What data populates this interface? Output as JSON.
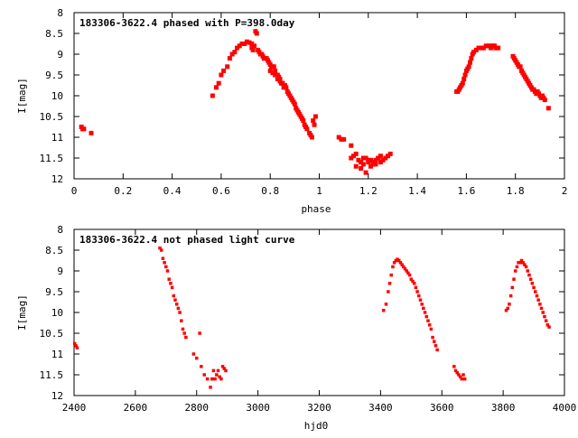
{
  "colors": {
    "points": "#ff0000",
    "axes": "#000000",
    "background": "#ffffff"
  },
  "chart_data": [
    {
      "type": "scatter",
      "title": "183306-3622.4 phased with P=398.0day",
      "xlabel": "phase",
      "ylabel": "I[mag]",
      "xlim": [
        0,
        2
      ],
      "ylim": [
        8,
        12
      ],
      "y_inverted": true,
      "grid": false,
      "legend": "none",
      "x_ticks": [
        0,
        0.2,
        0.4,
        0.6,
        0.8,
        1,
        1.2,
        1.4,
        1.6,
        1.8,
        2
      ],
      "x_tick_labels": [
        "0",
        "0.2",
        "0.4",
        "0.6",
        "0.8",
        "1",
        "1.2",
        "1.4",
        "1.6",
        "1.8",
        "2"
      ],
      "y_ticks": [
        8,
        8.5,
        9,
        9.5,
        10,
        10.5,
        11,
        11.5,
        12
      ],
      "y_tick_labels": [
        "8",
        "8.5",
        "9",
        "9.5",
        "10",
        "10.5",
        "11",
        "11.5",
        "12"
      ],
      "series": [
        {
          "x": [
            0.03,
            0.035,
            0.04,
            0.07,
            0.565,
            0.58,
            0.59,
            0.6,
            0.61,
            0.625,
            0.635,
            0.645,
            0.655,
            0.665,
            0.675,
            0.685,
            0.695,
            0.705,
            0.715,
            0.725,
            0.735,
            0.74,
            0.745,
            0.75,
            0.755,
            0.76,
            0.765,
            0.77,
            0.775,
            0.78,
            0.785,
            0.79,
            0.795,
            0.8,
            0.805,
            0.81,
            0.815,
            0.82,
            0.825,
            0.83,
            0.835,
            0.84,
            0.845,
            0.85,
            0.855,
            0.86,
            0.865,
            0.87,
            0.875,
            0.88,
            0.885,
            0.89,
            0.895,
            0.9,
            0.905,
            0.91,
            0.915,
            0.92,
            0.925,
            0.93,
            0.935,
            0.94,
            0.945,
            0.95,
            0.96,
            0.965,
            0.97,
            0.975,
            0.98,
            0.985,
            0.765,
            0.775,
            0.8,
            0.81,
            0.82,
            0.83,
            0.84,
            0.85,
            0.725,
            0.73,
            1.08,
            1.09,
            1.1,
            1.13,
            1.13,
            1.14,
            1.15,
            1.16,
            1.17,
            1.18,
            1.19,
            1.2,
            1.21,
            1.22,
            1.23,
            1.24,
            1.25,
            1.26,
            1.27,
            1.28,
            1.29,
            1.15,
            1.17,
            1.19,
            1.21,
            1.23,
            1.25,
            1.18,
            1.2,
            1.22,
            1.56,
            1.565,
            1.57,
            1.575,
            1.58,
            1.585,
            1.59,
            1.595,
            1.6,
            1.605,
            1.61,
            1.615,
            1.62,
            1.625,
            1.63,
            1.64,
            1.65,
            1.66,
            1.67,
            1.68,
            1.69,
            1.695,
            1.7,
            1.705,
            1.71,
            1.715,
            1.72,
            1.725,
            1.73,
            1.79,
            1.795,
            1.8,
            1.805,
            1.81,
            1.815,
            1.82,
            1.825,
            1.83,
            1.835,
            1.84,
            1.845,
            1.85,
            1.855,
            1.86,
            1.865,
            1.87,
            1.875,
            1.88,
            1.885,
            1.89,
            1.895,
            1.9,
            1.905,
            1.91,
            1.915,
            1.92,
            1.935
          ],
          "y": [
            10.75,
            10.8,
            10.8,
            10.9,
            10.0,
            9.8,
            9.7,
            9.5,
            9.4,
            9.3,
            9.1,
            9.0,
            8.95,
            8.85,
            8.8,
            8.75,
            8.75,
            8.7,
            8.72,
            8.75,
            8.8,
            8.45,
            8.5,
            8.9,
            8.95,
            9.0,
            9.0,
            9.05,
            9.1,
            9.1,
            9.1,
            9.15,
            9.2,
            9.25,
            9.3,
            9.3,
            9.3,
            9.4,
            9.5,
            9.5,
            9.55,
            9.6,
            9.7,
            9.7,
            9.8,
            9.75,
            9.8,
            9.9,
            9.95,
            10.0,
            10.05,
            10.1,
            10.15,
            10.2,
            10.3,
            10.35,
            10.4,
            10.45,
            10.5,
            10.55,
            10.6,
            10.7,
            10.75,
            10.8,
            10.9,
            10.95,
            11.0,
            10.6,
            10.7,
            10.5,
            9.0,
            9.1,
            9.4,
            9.45,
            9.5,
            9.6,
            9.65,
            9.7,
            8.85,
            8.9,
            11.0,
            11.05,
            11.05,
            11.2,
            11.5,
            11.45,
            11.4,
            11.55,
            11.6,
            11.65,
            11.5,
            11.6,
            11.55,
            11.6,
            11.55,
            11.5,
            11.45,
            11.55,
            11.5,
            11.45,
            11.4,
            11.7,
            11.75,
            11.85,
            11.7,
            11.65,
            11.6,
            11.5,
            11.55,
            11.65,
            9.9,
            9.9,
            9.85,
            9.8,
            9.75,
            9.7,
            9.6,
            9.5,
            9.4,
            9.35,
            9.3,
            9.2,
            9.1,
            9.0,
            8.95,
            8.9,
            8.85,
            8.85,
            8.85,
            8.8,
            8.8,
            8.8,
            8.85,
            8.8,
            8.8,
            8.8,
            8.85,
            8.85,
            8.85,
            9.05,
            9.1,
            9.15,
            9.2,
            9.25,
            9.3,
            9.3,
            9.4,
            9.45,
            9.5,
            9.55,
            9.6,
            9.65,
            9.7,
            9.75,
            9.8,
            9.85,
            9.85,
            9.9,
            9.95,
            9.9,
            9.95,
            10.0,
            10.05,
            10.0,
            10.05,
            10.1,
            10.3
          ]
        }
      ]
    },
    {
      "type": "scatter",
      "title": "183306-3622.4 not phased light curve",
      "xlabel": "hjd0",
      "ylabel": "I[mag]",
      "xlim": [
        2400,
        4000
      ],
      "ylim": [
        8,
        12
      ],
      "y_inverted": true,
      "grid": false,
      "legend": "none",
      "x_ticks": [
        2400,
        2600,
        2800,
        3000,
        3200,
        3400,
        3600,
        3800,
        4000
      ],
      "x_tick_labels": [
        "2400",
        "2600",
        "2800",
        "3000",
        "3200",
        "3400",
        "3600",
        "3800",
        "4000"
      ],
      "y_ticks": [
        8,
        8.5,
        9,
        9.5,
        10,
        10.5,
        11,
        11.5,
        12
      ],
      "y_tick_labels": [
        "8",
        "8.5",
        "9",
        "9.5",
        "10",
        "10.5",
        "11",
        "11.5",
        "12"
      ],
      "series": [
        {
          "x": [
            2402,
            2406,
            2410,
            2680,
            2685,
            2690,
            2695,
            2700,
            2705,
            2710,
            2715,
            2720,
            2725,
            2730,
            2735,
            2740,
            2745,
            2750,
            2755,
            2760,
            2765,
            2790,
            2800,
            2810,
            2815,
            2825,
            2835,
            2845,
            2850,
            2855,
            2860,
            2865,
            2870,
            2875,
            2880,
            2885,
            2890,
            2895,
            3410,
            3418,
            3425,
            3430,
            3435,
            3440,
            3445,
            3450,
            3455,
            3460,
            3465,
            3470,
            3475,
            3480,
            3485,
            3490,
            3495,
            3500,
            3505,
            3510,
            3515,
            3520,
            3525,
            3530,
            3535,
            3540,
            3545,
            3550,
            3555,
            3560,
            3565,
            3570,
            3575,
            3580,
            3585,
            3640,
            3645,
            3650,
            3655,
            3660,
            3665,
            3670,
            3675,
            3810,
            3815,
            3820,
            3825,
            3830,
            3835,
            3840,
            3845,
            3850,
            3855,
            3860,
            3865,
            3870,
            3875,
            3880,
            3885,
            3890,
            3895,
            3900,
            3905,
            3910,
            3915,
            3920,
            3925,
            3930,
            3935,
            3940,
            3945,
            3950
          ],
          "y": [
            10.75,
            10.8,
            10.85,
            8.45,
            8.5,
            8.7,
            8.8,
            8.9,
            9.0,
            9.2,
            9.3,
            9.4,
            9.6,
            9.7,
            9.8,
            9.9,
            10.0,
            10.2,
            10.4,
            10.5,
            10.6,
            11.0,
            11.1,
            10.5,
            11.3,
            11.5,
            11.6,
            11.8,
            11.6,
            11.4,
            11.6,
            11.5,
            11.4,
            11.55,
            11.6,
            11.3,
            11.35,
            11.4,
            9.95,
            9.8,
            9.5,
            9.3,
            9.1,
            8.9,
            8.8,
            8.75,
            8.72,
            8.75,
            8.8,
            8.85,
            8.9,
            8.95,
            9.0,
            9.05,
            9.1,
            9.2,
            9.25,
            9.3,
            9.4,
            9.5,
            9.6,
            9.7,
            9.8,
            9.9,
            10.0,
            10.1,
            10.2,
            10.3,
            10.4,
            10.6,
            10.7,
            10.8,
            10.9,
            11.3,
            11.4,
            11.45,
            11.5,
            11.55,
            11.6,
            11.5,
            11.6,
            9.95,
            9.9,
            9.8,
            9.6,
            9.4,
            9.2,
            9.0,
            8.9,
            8.8,
            8.8,
            8.75,
            8.8,
            8.85,
            8.9,
            9.0,
            9.1,
            9.2,
            9.3,
            9.4,
            9.5,
            9.6,
            9.7,
            9.8,
            9.9,
            10.0,
            10.1,
            10.2,
            10.3,
            10.35
          ]
        }
      ]
    }
  ]
}
